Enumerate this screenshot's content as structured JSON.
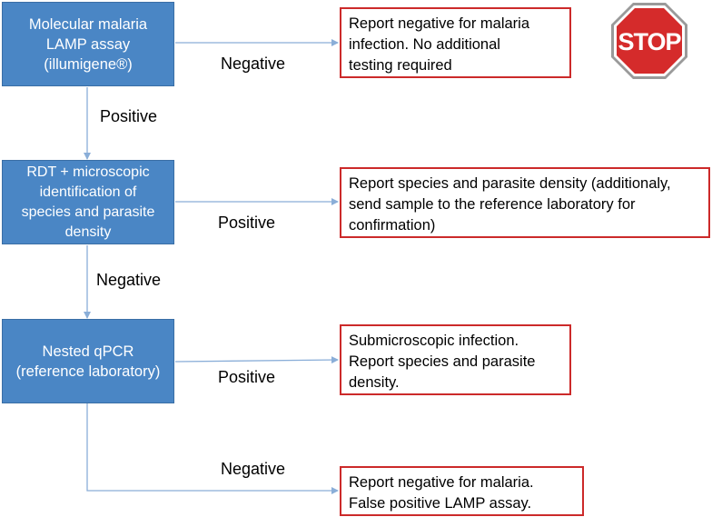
{
  "colors": {
    "process_fill": "#4a86c5",
    "result_border": "#cc2a2a",
    "connector": "#8aaed8",
    "stop_red": "#d52b2b"
  },
  "nodes": {
    "lamp": {
      "lines": [
        "Molecular malaria",
        "LAMP assay",
        "(illumigene®)"
      ]
    },
    "rdt": {
      "lines": [
        "RDT + microscopic",
        "identification of",
        "species and parasite",
        "density"
      ]
    },
    "qpcr": {
      "lines": [
        "Nested qPCR",
        "(reference laboratory)"
      ]
    }
  },
  "results": {
    "negative_no_testing": {
      "lines": [
        "Report negative for malaria",
        "infection. No additional",
        "testing required"
      ]
    },
    "species_density": {
      "lines": [
        "Report species and parasite density (additionaly,",
        "send sample to the reference laboratory for",
        "confirmation)"
      ]
    },
    "submicroscopic": {
      "lines": [
        "Submicroscopic infection.",
        "Report species and parasite",
        "density."
      ]
    },
    "false_positive": {
      "lines": [
        "Report negative for malaria.",
        "False positive LAMP assay."
      ]
    }
  },
  "edges": {
    "lamp_negative": "Negative",
    "lamp_positive": "Positive",
    "rdt_positive": "Positive",
    "rdt_negative": "Negative",
    "qpcr_positive": "Positive",
    "qpcr_negative": "Negative"
  },
  "stop_sign": {
    "text": "STOP",
    "icon": "stop-sign-icon"
  }
}
